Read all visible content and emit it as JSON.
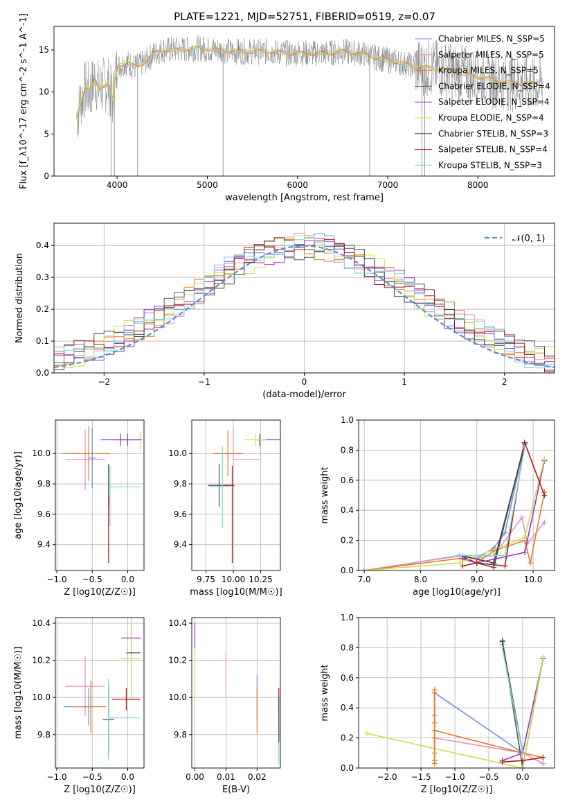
{
  "title": "PLATE=1221, MJD=52751, FIBERID=0519, z=0.07",
  "colors": [
    "#6a8fd8",
    "#e88fc0",
    "#e07c28",
    "#555555",
    "#9b30c0",
    "#c8e04a",
    "#444444",
    "#b01515",
    "#7ed3d8"
  ],
  "chart_data": [
    {
      "type": "line",
      "name": "spectrum",
      "xlabel": "wavelength [Angstrom, rest frame]",
      "ylabel": "Flux [f_λ10^-17 erg cm^-2 s^-1 A^-1]",
      "xlim": [
        3300,
        8850
      ],
      "ylim": [
        0,
        17.8
      ],
      "xticks": [
        4000,
        5000,
        6000,
        7000,
        8000
      ],
      "yticks": [
        0,
        5,
        10,
        15
      ],
      "grid": false,
      "legend_position": "right",
      "series_labels": [
        "Chabrier MILES, N_SSP=5",
        "Salpeter MILES, N_SSP=5",
        "Kroupa MILES, N_SSP=5",
        "Chabrier ELODIE, N_SSP=4",
        "Salpeter ELODIE, N_SSP=4",
        "Kroupa ELODIE, N_SSP=4",
        "Chabrier STELIB, N_SSP=3",
        "Salpeter STELIB, N_SSP=4",
        "Kroupa STELIB, N_SSP=3"
      ],
      "continuum": [
        [
          3550,
          7.0
        ],
        [
          3600,
          9.0
        ],
        [
          3650,
          10.5
        ],
        [
          3700,
          10.0
        ],
        [
          3750,
          11.5
        ],
        [
          3800,
          10.5
        ],
        [
          3900,
          11.0
        ],
        [
          3950,
          9.0
        ],
        [
          4000,
          13.0
        ],
        [
          4100,
          13.5
        ],
        [
          4200,
          13.0
        ],
        [
          4300,
          13.5
        ],
        [
          4400,
          14.5
        ],
        [
          4500,
          15.0
        ],
        [
          4700,
          15.0
        ],
        [
          4900,
          15.2
        ],
        [
          5100,
          15.0
        ],
        [
          5300,
          14.8
        ],
        [
          5500,
          14.8
        ],
        [
          5700,
          14.8
        ],
        [
          5900,
          14.6
        ],
        [
          6100,
          14.6
        ],
        [
          6300,
          14.6
        ],
        [
          6500,
          14.8
        ],
        [
          6700,
          14.6
        ],
        [
          6900,
          14.0
        ],
        [
          7100,
          13.6
        ],
        [
          7300,
          13.0
        ],
        [
          7500,
          12.8
        ],
        [
          7700,
          12.5
        ],
        [
          7900,
          12.0
        ],
        [
          8100,
          11.6
        ],
        [
          8300,
          11.2
        ],
        [
          8500,
          11.0
        ],
        [
          8700,
          11.0
        ]
      ],
      "absorption_lines": [
        3934,
        3969,
        4227,
        5175,
        6800,
        7380,
        7410
      ]
    },
    {
      "type": "line",
      "name": "residual-histogram",
      "xlabel": "(data-model)/error",
      "ylabel": "Normed distribution",
      "xlim": [
        -2.5,
        2.5
      ],
      "ylim": [
        0,
        0.47
      ],
      "xticks": [
        -2,
        -1,
        0,
        1,
        2
      ],
      "yticks": [
        0.0,
        0.1,
        0.2,
        0.3,
        0.4
      ],
      "grid": true,
      "legend_position": "top-right",
      "legend": [
        "𝒩(0, 1)"
      ],
      "normal_curve": {
        "mu": 0,
        "sigma": 1
      },
      "bin_width": 0.1
    },
    {
      "type": "scatter",
      "name": "age-vs-Z",
      "xlabel": "Z [log10(Z/Z☉)]",
      "ylabel": "age  [log10(age/yr)]",
      "xlim": [
        -1.02,
        0.23
      ],
      "ylim": [
        9.23,
        10.22
      ],
      "xticks": [
        -1.0,
        -0.5,
        0.0
      ],
      "yticks": [
        9.4,
        9.6,
        9.8,
        10.0
      ],
      "grid": true,
      "points": [
        {
          "x": -0.8,
          "y": 10.0,
          "xe": 0.12,
          "ye": 0.0,
          "c": 0
        },
        {
          "x": -0.6,
          "y": 9.96,
          "xe": 0.28,
          "ye": 0.2,
          "c": 1
        },
        {
          "x": -0.55,
          "y": 10.0,
          "xe": 0.3,
          "ye": 0.18,
          "c": 2
        },
        {
          "x": -0.5,
          "y": 9.97,
          "xe": 0.05,
          "ye": 0.2,
          "c": 0
        },
        {
          "x": 0.0,
          "y": 10.09,
          "xe": 0.2,
          "ye": 0.04,
          "c": 3
        },
        {
          "x": -0.1,
          "y": 10.09,
          "xe": 0.28,
          "ye": 0.04,
          "c": 4
        },
        {
          "x": 0.18,
          "y": 10.08,
          "xe": 0.0,
          "ye": 0.06,
          "c": 5
        },
        {
          "x": -0.27,
          "y": 9.79,
          "xe": 0.0,
          "ye": 0.14,
          "c": 6
        },
        {
          "x": -0.27,
          "y": 9.5,
          "xe": 0.0,
          "ye": 0.22,
          "c": 7
        },
        {
          "x": -0.05,
          "y": 9.78,
          "xe": 0.22,
          "ye": 0.0,
          "c": 8
        },
        {
          "x": -0.25,
          "y": 9.72,
          "xe": 0.0,
          "ye": 0.2,
          "c": 8
        }
      ]
    },
    {
      "type": "scatter",
      "name": "age-vs-mass",
      "xlabel": "mass [log10(M/M☉)]",
      "ylabel": "",
      "xlim": [
        9.62,
        10.43
      ],
      "ylim": [
        9.23,
        10.22
      ],
      "xticks": [
        9.75,
        10.0,
        10.25
      ],
      "yticks": [
        9.4,
        9.6,
        9.8,
        10.0
      ],
      "grid": true,
      "points": [
        {
          "x": 9.95,
          "y": 10.0,
          "xe": 0.12,
          "ye": 0.0,
          "c": 0
        },
        {
          "x": 10.12,
          "y": 9.96,
          "xe": 0.12,
          "ye": 0.0,
          "c": 1
        },
        {
          "x": 9.95,
          "y": 10.0,
          "xe": 0.14,
          "ye": 0.15,
          "c": 2
        },
        {
          "x": 10.0,
          "y": 10.05,
          "xe": 0.0,
          "ye": 0.12,
          "c": 1
        },
        {
          "x": 10.24,
          "y": 10.09,
          "xe": 0.0,
          "ye": 0.04,
          "c": 3
        },
        {
          "x": 10.32,
          "y": 10.09,
          "xe": 0.12,
          "ye": 0.0,
          "c": 4
        },
        {
          "x": 10.2,
          "y": 10.09,
          "xe": 0.1,
          "ye": 0.04,
          "c": 5
        },
        {
          "x": 9.87,
          "y": 9.79,
          "xe": 0.1,
          "ye": 0.14,
          "c": 6
        },
        {
          "x": 9.99,
          "y": 9.6,
          "xe": 0.0,
          "ye": 0.32,
          "c": 7
        },
        {
          "x": 9.9,
          "y": 9.78,
          "xe": 0.12,
          "ye": 0.27,
          "c": 8
        },
        {
          "x": 9.96,
          "y": 9.79,
          "xe": 0.05,
          "ye": 0.0,
          "c": 7
        }
      ]
    },
    {
      "type": "line",
      "name": "mass-weight-vs-age",
      "xlabel": "age  [log10(age/yr)]",
      "ylabel": "mass weight",
      "xlim": [
        6.9,
        10.38
      ],
      "ylim": [
        0.0,
        1.0
      ],
      "xticks": [
        7,
        8,
        9,
        10
      ],
      "yticks": [
        0.0,
        0.2,
        0.4,
        0.6,
        0.8,
        1.0
      ],
      "grid": true,
      "series": [
        {
          "c": 0,
          "x": [
            7.0,
            8.7,
            9.0,
            9.3,
            9.5,
            9.85
          ],
          "y": [
            0.0,
            0.1,
            0.08,
            0.15,
            0.25,
            0.85
          ]
        },
        {
          "c": 1,
          "x": [
            7.0,
            8.75,
            9.0,
            9.3,
            9.8,
            9.9,
            10.2
          ],
          "y": [
            0.0,
            0.1,
            0.08,
            0.1,
            0.35,
            0.18,
            0.32
          ]
        },
        {
          "c": 2,
          "x": [
            7.0,
            8.7,
            9.0,
            9.3,
            9.85,
            9.95,
            10.2
          ],
          "y": [
            0.0,
            0.08,
            0.05,
            0.13,
            0.2,
            0.05,
            0.52
          ]
        },
        {
          "c": 3,
          "x": [
            8.7,
            9.0,
            9.3,
            9.85
          ],
          "y": [
            0.1,
            0.05,
            0.02,
            0.85
          ]
        },
        {
          "c": 4,
          "x": [
            8.75,
            9.0,
            9.85,
            10.2
          ],
          "y": [
            0.08,
            0.05,
            0.12,
            0.73
          ]
        },
        {
          "c": 5,
          "x": [
            7.0,
            8.7,
            9.85,
            10.2
          ],
          "y": [
            0.0,
            0.05,
            0.22,
            0.74
          ]
        },
        {
          "c": 6,
          "x": [
            8.7,
            9.3,
            9.85
          ],
          "y": [
            0.1,
            0.05,
            0.84
          ]
        },
        {
          "c": 7,
          "x": [
            8.75,
            9.0,
            9.5,
            9.85,
            10.2
          ],
          "y": [
            0.03,
            0.05,
            0.03,
            0.85,
            0.5
          ]
        },
        {
          "c": 8,
          "x": [
            8.7,
            9.5,
            9.85
          ],
          "y": [
            0.1,
            0.1,
            0.82
          ]
        }
      ]
    },
    {
      "type": "scatter",
      "name": "mass-vs-Z",
      "xlabel": "Z [log10(Z/Z☉)]",
      "ylabel": "mass [log10(M/M☉)]",
      "xlim": [
        -1.02,
        0.23
      ],
      "ylim": [
        9.62,
        10.43
      ],
      "xticks": [
        -1.0,
        -0.5,
        0.0
      ],
      "yticks": [
        9.8,
        10.0,
        10.2,
        10.4
      ],
      "grid": true,
      "points": [
        {
          "x": -0.6,
          "y": 10.06,
          "xe": 0.28,
          "ye": 0.16,
          "c": 1
        },
        {
          "x": -0.7,
          "y": 9.95,
          "xe": 0.2,
          "ye": 0.0,
          "c": 0
        },
        {
          "x": -0.52,
          "y": 9.95,
          "xe": 0.22,
          "ye": 0.14,
          "c": 2
        },
        {
          "x": -0.55,
          "y": 9.95,
          "xe": 0.0,
          "ye": 0.1,
          "c": 0
        },
        {
          "x": -0.02,
          "y": 9.99,
          "xe": 0.2,
          "ye": 0.06,
          "c": 7
        },
        {
          "x": 0.05,
          "y": 10.32,
          "xe": 0.14,
          "ye": 0.08,
          "c": 4
        },
        {
          "x": 0.05,
          "y": 10.21,
          "xe": 0.15,
          "ye": 0.22,
          "c": 5
        },
        {
          "x": 0.08,
          "y": 10.24,
          "xe": 0.1,
          "ye": 0.0,
          "c": 3
        },
        {
          "x": -0.27,
          "y": 9.88,
          "xe": 0.08,
          "ye": 0.2,
          "c": 6
        },
        {
          "x": -0.05,
          "y": 9.89,
          "xe": 0.22,
          "ye": 0.0,
          "c": 8
        },
        {
          "x": -0.27,
          "y": 9.88,
          "xe": 0.0,
          "ye": 0.22,
          "c": 8
        }
      ]
    },
    {
      "type": "scatter",
      "name": "mass-vs-ebv",
      "xlabel": "E(B-V)",
      "ylabel": "",
      "xlim": [
        -0.001,
        0.0275
      ],
      "ylim": [
        9.62,
        10.43
      ],
      "xticks": [
        0.0,
        0.01,
        0.02
      ],
      "yticks": [
        9.8,
        10.0,
        10.2,
        10.4
      ],
      "grid": true,
      "points": [
        {
          "x": 0.0,
          "y": 10.32,
          "ye": 0.08,
          "c": 4
        },
        {
          "x": 0.0,
          "y": 10.13,
          "ye": 0.14,
          "c": 5
        },
        {
          "x": 0.01,
          "y": 10.12,
          "ye": 0.12,
          "c": 1
        },
        {
          "x": 0.02,
          "y": 10.0,
          "ye": 0.12,
          "c": 0
        },
        {
          "x": 0.02,
          "y": 9.93,
          "ye": 0.12,
          "c": 2
        },
        {
          "x": 0.027,
          "y": 9.99,
          "ye": 0.06,
          "c": 7
        },
        {
          "x": 0.027,
          "y": 9.82,
          "ye": 0.18,
          "c": 8
        },
        {
          "x": 0.027,
          "y": 9.88,
          "ye": 0.12,
          "c": 6
        }
      ]
    },
    {
      "type": "line",
      "name": "mass-weight-vs-Z",
      "xlabel": "Z [log10(Z/Z☉)]",
      "ylabel": "mass weight",
      "xlim": [
        -2.42,
        0.47
      ],
      "ylim": [
        0.0,
        1.0
      ],
      "xticks": [
        -2.0,
        -1.5,
        -1.0,
        -0.5,
        0.0
      ],
      "yticks": [
        0.0,
        0.2,
        0.4,
        0.6,
        0.8,
        1.0
      ],
      "grid": true,
      "series": [
        {
          "c": 0,
          "x": [
            -1.3,
            0.0,
            -0.3
          ],
          "y": [
            0.5,
            0.1,
            0.82
          ]
        },
        {
          "c": 1,
          "x": [
            -1.3,
            0.0,
            0.3
          ],
          "y": [
            0.2,
            0.1,
            0.03
          ]
        },
        {
          "c": 2,
          "x": [
            -1.3,
            0.0,
            0.3
          ],
          "y": [
            0.25,
            0.1,
            0.07
          ]
        },
        {
          "c": 3,
          "x": [
            -0.3,
            0.0,
            0.3
          ],
          "y": [
            0.85,
            0.0,
            0.73
          ]
        },
        {
          "c": 4,
          "x": [
            -0.3,
            0.0,
            0.3
          ],
          "y": [
            0.05,
            0.1,
            0.73
          ]
        },
        {
          "c": 5,
          "x": [
            -2.3,
            0.0,
            0.3
          ],
          "y": [
            0.23,
            0.0,
            0.74
          ]
        },
        {
          "c": 6,
          "x": [
            -0.3,
            0.0
          ],
          "y": [
            0.84,
            0.1
          ]
        },
        {
          "c": 7,
          "x": [
            -0.3,
            0.0,
            0.3
          ],
          "y": [
            0.04,
            0.05,
            0.07
          ]
        },
        {
          "c": 8,
          "x": [
            -0.3,
            0.0
          ],
          "y": [
            0.8,
            0.1
          ]
        }
      ],
      "vertical_markers": {
        "x": -1.3,
        "y": [
          0.03,
          0.05,
          0.1,
          0.2,
          0.25,
          0.3,
          0.35,
          0.5,
          0.52
        ]
      }
    }
  ]
}
